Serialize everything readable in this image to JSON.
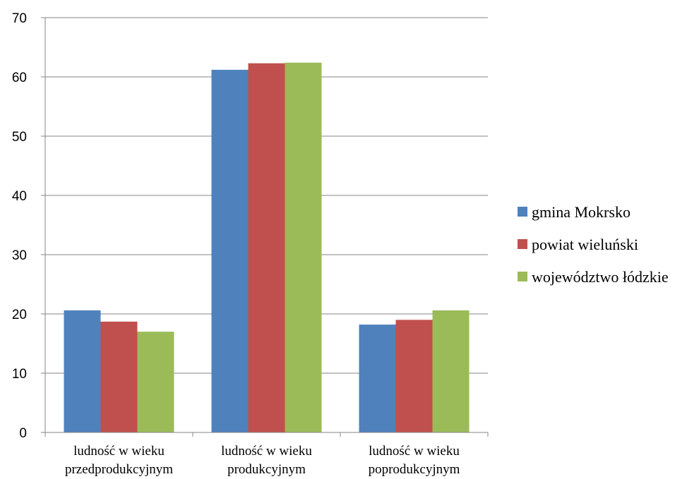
{
  "chart_data": {
    "type": "bar",
    "categories": [
      [
        "ludność w wieku",
        "przedprodukcyjnym"
      ],
      [
        "ludność w wieku",
        "produkcyjnym"
      ],
      [
        "ludność w wieku",
        "poprodukcyjnym"
      ]
    ],
    "series": [
      {
        "name": "gmina Mokrsko",
        "color": "#4F81BD",
        "values": [
          20.6,
          61.2,
          18.2
        ]
      },
      {
        "name": "powiat wieluński",
        "color": "#C0504D",
        "values": [
          18.7,
          62.3,
          19.0
        ]
      },
      {
        "name": "województwo łódzkie",
        "color": "#9BBB59",
        "values": [
          17.0,
          62.4,
          20.6
        ]
      }
    ],
    "ylim": [
      0,
      70
    ],
    "yticks": [
      0,
      10,
      20,
      30,
      40,
      50,
      60,
      70
    ],
    "grid": true,
    "legend": "right"
  }
}
